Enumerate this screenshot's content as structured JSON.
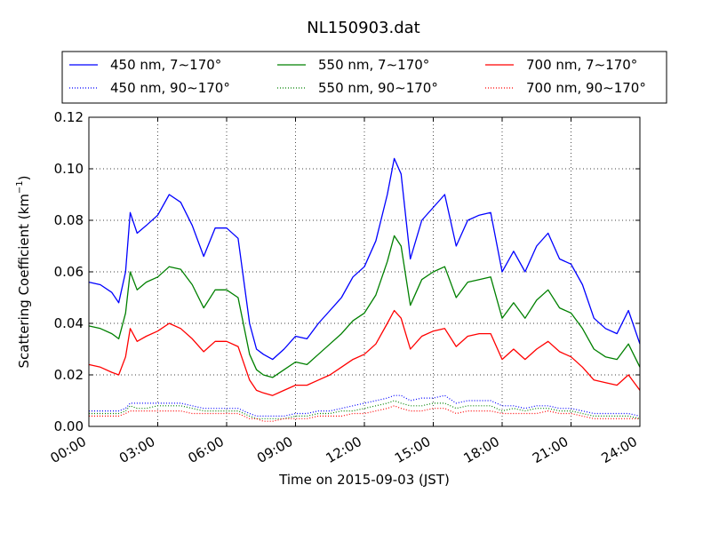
{
  "chart_data": {
    "type": "line",
    "title": "NL150903.dat",
    "xlabel": "Time on 2015-09-03 (JST)",
    "ylabel": "Scattering Coefficient (km",
    "ylabel_sup": "−1",
    "ylabel_close": ")",
    "xlim": [
      0,
      24
    ],
    "ylim": [
      0,
      0.12
    ],
    "grid": true,
    "legend_position": "top",
    "x_ticks": [
      0,
      3,
      6,
      9,
      12,
      15,
      18,
      21,
      24
    ],
    "x_tick_labels": [
      "00:00",
      "03:00",
      "06:00",
      "09:00",
      "12:00",
      "15:00",
      "18:00",
      "21:00",
      "24:00"
    ],
    "y_ticks": [
      0.0,
      0.02,
      0.04,
      0.06,
      0.08,
      0.1,
      0.12
    ],
    "y_tick_labels": [
      "0.00",
      "0.02",
      "0.04",
      "0.06",
      "0.08",
      "0.10",
      "0.12"
    ],
    "x": [
      0.0,
      0.5,
      1.0,
      1.3,
      1.6,
      1.8,
      2.1,
      2.5,
      3.0,
      3.5,
      4.0,
      4.5,
      5.0,
      5.5,
      6.0,
      6.5,
      7.0,
      7.3,
      7.6,
      8.0,
      8.5,
      9.0,
      9.5,
      10.0,
      10.5,
      11.0,
      11.5,
      12.0,
      12.5,
      13.0,
      13.3,
      13.6,
      14.0,
      14.5,
      15.0,
      15.5,
      16.0,
      16.5,
      17.0,
      17.5,
      18.0,
      18.5,
      19.0,
      19.5,
      20.0,
      20.5,
      21.0,
      21.5,
      22.0,
      22.5,
      23.0,
      23.5,
      24.0
    ],
    "series": [
      {
        "name": "450 nm, 7∼170°",
        "color": "#0000ff",
        "style": "solid",
        "values": [
          0.056,
          0.055,
          0.052,
          0.048,
          0.06,
          0.083,
          0.075,
          0.078,
          0.082,
          0.09,
          0.087,
          0.078,
          0.066,
          0.077,
          0.077,
          0.073,
          0.04,
          0.03,
          0.028,
          0.026,
          0.03,
          0.035,
          0.034,
          0.04,
          0.045,
          0.05,
          0.058,
          0.062,
          0.072,
          0.09,
          0.104,
          0.098,
          0.065,
          0.08,
          0.085,
          0.09,
          0.07,
          0.08,
          0.082,
          0.083,
          0.06,
          0.068,
          0.06,
          0.07,
          0.075,
          0.065,
          0.063,
          0.055,
          0.042,
          0.038,
          0.036,
          0.045,
          0.032
        ]
      },
      {
        "name": "550 nm, 7∼170°",
        "color": "#008000",
        "style": "solid",
        "values": [
          0.039,
          0.038,
          0.036,
          0.034,
          0.044,
          0.06,
          0.053,
          0.056,
          0.058,
          0.062,
          0.061,
          0.055,
          0.046,
          0.053,
          0.053,
          0.05,
          0.028,
          0.022,
          0.02,
          0.019,
          0.022,
          0.025,
          0.024,
          0.028,
          0.032,
          0.036,
          0.041,
          0.044,
          0.051,
          0.064,
          0.074,
          0.07,
          0.047,
          0.057,
          0.06,
          0.062,
          0.05,
          0.056,
          0.057,
          0.058,
          0.042,
          0.048,
          0.042,
          0.049,
          0.053,
          0.046,
          0.044,
          0.038,
          0.03,
          0.027,
          0.026,
          0.032,
          0.023
        ]
      },
      {
        "name": "700 nm, 7∼170°",
        "color": "#ff0000",
        "style": "solid",
        "values": [
          0.024,
          0.023,
          0.021,
          0.02,
          0.027,
          0.038,
          0.033,
          0.035,
          0.037,
          0.04,
          0.038,
          0.034,
          0.029,
          0.033,
          0.033,
          0.031,
          0.018,
          0.014,
          0.013,
          0.012,
          0.014,
          0.016,
          0.016,
          0.018,
          0.02,
          0.023,
          0.026,
          0.028,
          0.032,
          0.04,
          0.045,
          0.042,
          0.03,
          0.035,
          0.037,
          0.038,
          0.031,
          0.035,
          0.036,
          0.036,
          0.026,
          0.03,
          0.026,
          0.03,
          0.033,
          0.029,
          0.027,
          0.023,
          0.018,
          0.017,
          0.016,
          0.02,
          0.014
        ]
      },
      {
        "name": "450 nm, 90∼170°",
        "color": "#0000ff",
        "style": "dotted",
        "values": [
          0.006,
          0.006,
          0.006,
          0.006,
          0.007,
          0.009,
          0.009,
          0.009,
          0.009,
          0.009,
          0.009,
          0.008,
          0.007,
          0.007,
          0.007,
          0.007,
          0.005,
          0.004,
          0.004,
          0.004,
          0.004,
          0.005,
          0.005,
          0.006,
          0.006,
          0.007,
          0.008,
          0.009,
          0.01,
          0.011,
          0.012,
          0.012,
          0.01,
          0.011,
          0.011,
          0.012,
          0.009,
          0.01,
          0.01,
          0.01,
          0.008,
          0.008,
          0.007,
          0.008,
          0.008,
          0.007,
          0.007,
          0.006,
          0.005,
          0.005,
          0.005,
          0.005,
          0.004
        ]
      },
      {
        "name": "550 nm, 90∼170°",
        "color": "#008000",
        "style": "dotted",
        "values": [
          0.005,
          0.005,
          0.005,
          0.005,
          0.006,
          0.008,
          0.007,
          0.007,
          0.008,
          0.008,
          0.008,
          0.007,
          0.006,
          0.006,
          0.006,
          0.006,
          0.004,
          0.003,
          0.003,
          0.003,
          0.003,
          0.004,
          0.004,
          0.005,
          0.005,
          0.006,
          0.006,
          0.007,
          0.008,
          0.009,
          0.01,
          0.009,
          0.008,
          0.008,
          0.009,
          0.009,
          0.007,
          0.008,
          0.008,
          0.008,
          0.006,
          0.007,
          0.006,
          0.007,
          0.007,
          0.006,
          0.006,
          0.005,
          0.004,
          0.004,
          0.004,
          0.004,
          0.003
        ]
      },
      {
        "name": "700 nm, 90∼170°",
        "color": "#ff0000",
        "style": "dotted",
        "values": [
          0.004,
          0.004,
          0.004,
          0.004,
          0.005,
          0.006,
          0.006,
          0.006,
          0.006,
          0.006,
          0.006,
          0.005,
          0.005,
          0.005,
          0.005,
          0.005,
          0.003,
          0.003,
          0.002,
          0.002,
          0.003,
          0.003,
          0.003,
          0.004,
          0.004,
          0.004,
          0.005,
          0.005,
          0.006,
          0.007,
          0.008,
          0.007,
          0.006,
          0.006,
          0.007,
          0.007,
          0.005,
          0.006,
          0.006,
          0.006,
          0.005,
          0.005,
          0.005,
          0.005,
          0.006,
          0.005,
          0.005,
          0.004,
          0.003,
          0.003,
          0.003,
          0.003,
          0.003
        ]
      }
    ]
  }
}
